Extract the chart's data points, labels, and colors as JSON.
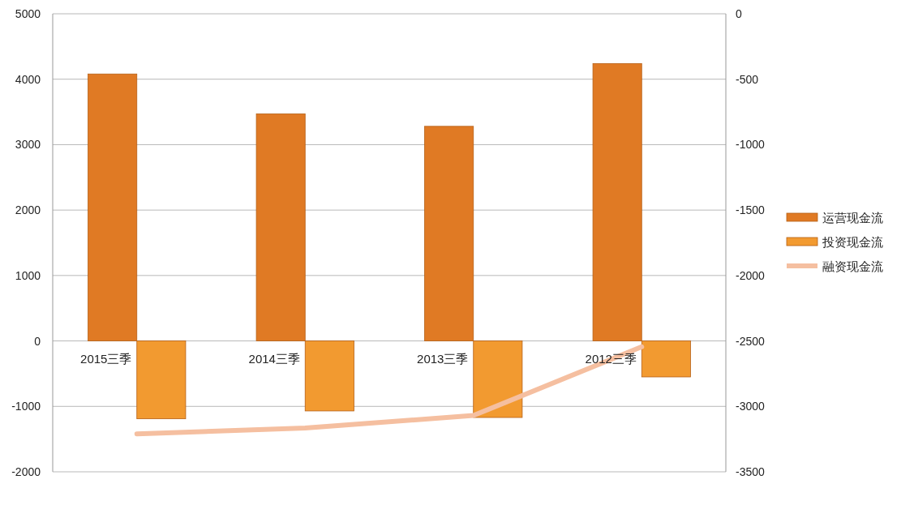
{
  "chart_data": {
    "type": "bar",
    "categories": [
      "2015三季",
      "2014三季",
      "2013三季",
      "2012三季"
    ],
    "series": [
      {
        "name": "运营现金流",
        "color": "#e07a24",
        "values": [
          4080,
          3470,
          3280,
          4240
        ]
      },
      {
        "name": "投资现金流",
        "color": "#f29a30",
        "values": [
          -1190,
          -1070,
          -1170,
          -550
        ]
      },
      {
        "name": "融资现金流",
        "type": "line",
        "axis": "y2",
        "color": "#f5bfa0",
        "values": [
          -3210,
          -3165,
          -3070,
          -2545
        ]
      }
    ],
    "ylim": [
      -2000,
      5000
    ],
    "yticks": [
      -2000,
      -1000,
      0,
      1000,
      2000,
      3000,
      4000,
      5000
    ],
    "y2lim": [
      -3500,
      0
    ],
    "y2ticks": [
      -3500,
      -3000,
      -2500,
      -2000,
      -1500,
      -1000,
      -500,
      0
    ],
    "grid": "y",
    "legend": "right"
  }
}
